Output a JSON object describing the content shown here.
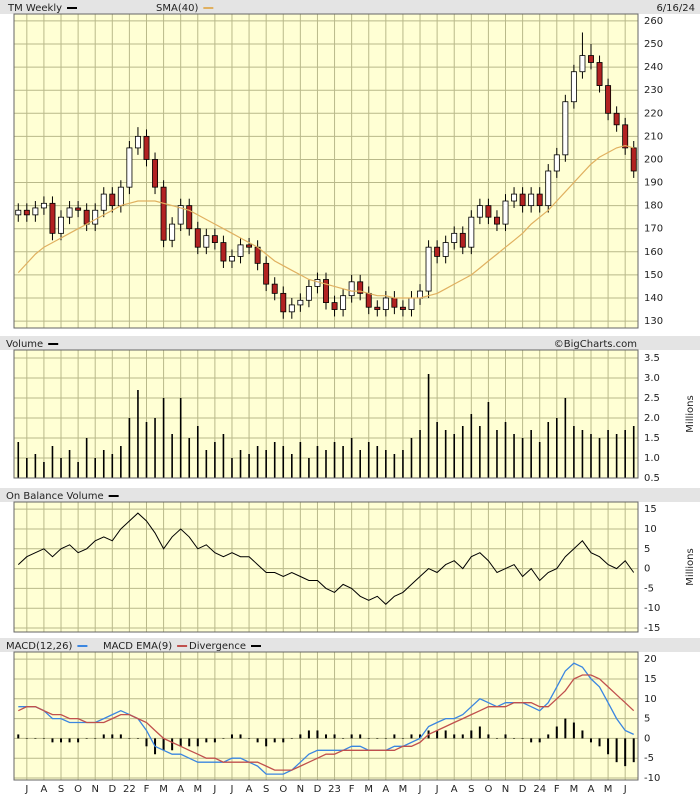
{
  "chart_data": [
    {
      "type": "candlestick",
      "title": "TM Weekly",
      "date": "6/16/24",
      "up_color": "#ffffff",
      "down_color": "#b22222",
      "series": [
        {
          "name": "TM Weekly",
          "color": "#000000",
          "open": [
            176,
            178,
            176,
            179,
            181,
            168,
            175,
            179,
            178,
            172,
            178,
            185,
            180,
            188,
            205,
            210,
            200,
            188,
            165,
            172,
            180,
            170,
            162,
            167,
            164,
            156,
            158,
            163,
            162,
            155,
            146,
            142,
            134,
            137,
            139,
            145,
            148,
            138,
            135,
            141,
            147,
            142,
            136,
            135,
            140,
            136,
            135,
            140,
            143,
            162,
            158,
            164,
            168,
            162,
            175,
            180,
            175,
            172,
            182,
            185,
            180,
            185,
            180,
            195,
            202,
            225,
            238,
            245,
            242,
            232,
            220,
            215,
            205
          ],
          "high": [
            181,
            181,
            182,
            184,
            184,
            178,
            182,
            182,
            181,
            181,
            188,
            188,
            191,
            208,
            214,
            213,
            203,
            191,
            175,
            183,
            183,
            173,
            170,
            170,
            167,
            161,
            166,
            166,
            165,
            158,
            149,
            145,
            140,
            142,
            148,
            151,
            151,
            141,
            144,
            150,
            150,
            145,
            139,
            143,
            143,
            139,
            143,
            146,
            165,
            165,
            167,
            171,
            171,
            178,
            183,
            183,
            178,
            185,
            188,
            188,
            188,
            188,
            198,
            205,
            228,
            241,
            255,
            250,
            245,
            235,
            223,
            218,
            208
          ],
          "low": [
            173,
            173,
            173,
            176,
            165,
            165,
            172,
            175,
            169,
            169,
            175,
            177,
            177,
            185,
            202,
            197,
            185,
            162,
            162,
            169,
            167,
            159,
            159,
            161,
            153,
            153,
            155,
            159,
            152,
            143,
            139,
            131,
            131,
            134,
            136,
            142,
            135,
            132,
            132,
            138,
            139,
            133,
            132,
            132,
            133,
            132,
            132,
            137,
            140,
            155,
            155,
            161,
            159,
            159,
            172,
            172,
            169,
            169,
            179,
            177,
            177,
            177,
            177,
            192,
            199,
            222,
            235,
            239,
            229,
            217,
            212,
            202,
            192
          ],
          "close": [
            178,
            176,
            179,
            181,
            168,
            175,
            179,
            178,
            172,
            178,
            185,
            180,
            188,
            205,
            210,
            200,
            188,
            165,
            172,
            180,
            170,
            162,
            167,
            164,
            156,
            158,
            163,
            162,
            155,
            146,
            142,
            134,
            137,
            139,
            145,
            148,
            138,
            135,
            141,
            147,
            142,
            136,
            135,
            140,
            136,
            135,
            140,
            143,
            162,
            158,
            164,
            168,
            162,
            175,
            180,
            175,
            172,
            182,
            185,
            180,
            185,
            180,
            195,
            202,
            225,
            238,
            245,
            242,
            232,
            220,
            215,
            205,
            195
          ]
        },
        {
          "name": "SMA(40)",
          "color": "#e0b060",
          "values": [
            151,
            155,
            159,
            162,
            164,
            166,
            168,
            170,
            172,
            174,
            176,
            178,
            180,
            181,
            182,
            182,
            182,
            181,
            180,
            179,
            178,
            176,
            174,
            172,
            170,
            168,
            166,
            164,
            162,
            159,
            156,
            154,
            152,
            150,
            148,
            147,
            146,
            145,
            144,
            143,
            143,
            142,
            141,
            141,
            140,
            140,
            140,
            140,
            141,
            142,
            144,
            146,
            148,
            150,
            153,
            156,
            159,
            162,
            165,
            168,
            172,
            175,
            178,
            182,
            186,
            190,
            194,
            198,
            201,
            203,
            205,
            206,
            205
          ]
        }
      ],
      "ylim": [
        127,
        263
      ],
      "yticks": [
        130,
        140,
        150,
        160,
        170,
        180,
        190,
        200,
        210,
        220,
        230,
        240,
        250,
        260
      ],
      "grid": true
    },
    {
      "type": "bar",
      "title": "Volume",
      "source": "©BigCharts.com",
      "y_label": "Millions",
      "color": "#000000",
      "values": [
        1.4,
        1.0,
        1.1,
        0.9,
        1.3,
        1.0,
        1.2,
        0.9,
        1.5,
        1.0,
        1.2,
        1.1,
        1.3,
        2.0,
        2.7,
        1.9,
        2.0,
        2.5,
        1.6,
        2.5,
        1.5,
        1.8,
        1.2,
        1.4,
        1.6,
        1.0,
        1.2,
        1.1,
        1.3,
        1.2,
        1.4,
        1.3,
        1.1,
        1.4,
        1.0,
        1.3,
        1.2,
        1.4,
        1.3,
        1.5,
        1.2,
        1.4,
        1.3,
        1.2,
        1.1,
        1.2,
        1.5,
        1.7,
        3.1,
        1.9,
        1.7,
        1.6,
        1.8,
        2.1,
        1.8,
        2.4,
        1.7,
        1.9,
        1.6,
        1.5,
        1.7,
        1.4,
        1.9,
        2.0,
        2.5,
        1.8,
        1.7,
        1.6,
        1.5,
        1.7,
        1.6,
        1.7,
        1.8
      ],
      "ylim": [
        0.5,
        3.7
      ],
      "yticks": [
        0.5,
        {
          "value": 1,
          "label": "1.0"
        },
        1.5,
        {
          "value": 2,
          "label": "2.0"
        },
        2.5,
        {
          "value": 3,
          "label": "3.0"
        },
        3.5
      ],
      "grid": true
    },
    {
      "type": "line",
      "title": "On Balance Volume",
      "y_label": "Millions",
      "color": "#000000",
      "values": [
        1,
        3,
        4,
        5,
        3,
        5,
        6,
        4,
        5,
        7,
        8,
        7,
        10,
        12,
        14,
        12,
        9,
        5,
        8,
        10,
        8,
        5,
        6,
        4,
        3,
        4,
        3,
        3,
        1,
        -1,
        -1,
        -2,
        -1,
        -2,
        -3,
        -3,
        -5,
        -6,
        -4,
        -5,
        -7,
        -8,
        -7,
        -9,
        -7,
        -6,
        -4,
        -2,
        0,
        -1,
        1,
        2,
        0,
        3,
        4,
        2,
        -1,
        0,
        1,
        -2,
        0,
        -3,
        -1,
        0,
        3,
        5,
        7,
        4,
        3,
        1,
        0,
        2,
        -1
      ],
      "ylim": [
        -16,
        16.8
      ],
      "yticks": [
        -15,
        -10,
        -5,
        0,
        5,
        10,
        15
      ],
      "grid": true
    },
    {
      "type": "macd",
      "categories": [
        null,
        "J",
        null,
        "A",
        null,
        "S",
        null,
        "O",
        null,
        "N",
        null,
        "D",
        null,
        "22",
        null,
        "F",
        null,
        "M",
        null,
        "A",
        null,
        "M",
        null,
        "J",
        null,
        "J",
        null,
        "A",
        null,
        "S",
        null,
        "O",
        null,
        "N",
        null,
        "D",
        null,
        "23",
        null,
        "F",
        null,
        "M",
        null,
        "A",
        null,
        "M",
        null,
        "J",
        null,
        "J",
        null,
        "A",
        null,
        "S",
        null,
        "O",
        null,
        "N",
        null,
        "D",
        null,
        "24",
        null,
        "F",
        null,
        "M",
        null,
        "A",
        null,
        "M",
        null,
        "J",
        null
      ],
      "series": [
        {
          "name": "MACD(12,26)",
          "color": "#3b86e0",
          "kind": "line",
          "values": [
            8,
            8,
            8,
            7,
            5,
            5,
            4,
            4,
            4,
            4,
            5,
            6,
            7,
            6,
            5,
            2,
            -2,
            -3,
            -4,
            -4,
            -5,
            -6,
            -6,
            -6,
            -6,
            -5,
            -5,
            -6,
            -7,
            -9,
            -9,
            -9,
            -8,
            -6,
            -4,
            -3,
            -3,
            -3,
            -3,
            -2,
            -2,
            -3,
            -3,
            -3,
            -2,
            -2,
            -1,
            0,
            3,
            4,
            5,
            5,
            6,
            8,
            10,
            9,
            8,
            9,
            9,
            9,
            8,
            7,
            9,
            13,
            17,
            19,
            18,
            15,
            13,
            9,
            5,
            2,
            1
          ]
        },
        {
          "name": "MACD EMA(9)",
          "color": "#c0504d",
          "kind": "line",
          "values": [
            7,
            8,
            8,
            7,
            6,
            6,
            5,
            5,
            4,
            4,
            4,
            5,
            6,
            6,
            5,
            4,
            2,
            0,
            -1,
            -2,
            -3,
            -4,
            -5,
            -5,
            -6,
            -6,
            -6,
            -6,
            -6,
            -7,
            -8,
            -8,
            -8,
            -7,
            -6,
            -5,
            -4,
            -4,
            -3,
            -3,
            -3,
            -3,
            -3,
            -3,
            -3,
            -2,
            -2,
            -1,
            1,
            2,
            3,
            4,
            5,
            6,
            7,
            8,
            8,
            8,
            9,
            9,
            9,
            8,
            8,
            10,
            12,
            15,
            16,
            16,
            15,
            13,
            11,
            9,
            7
          ]
        },
        {
          "name": "Divergence",
          "color": "#000000",
          "kind": "bar",
          "values": [
            1,
            0,
            0,
            0,
            -1,
            -1,
            -1,
            -1,
            0,
            0,
            1,
            1,
            1,
            0,
            0,
            -2,
            -4,
            -3,
            -3,
            -2,
            -2,
            -2,
            -1,
            -1,
            0,
            1,
            1,
            0,
            -1,
            -2,
            -1,
            -1,
            0,
            1,
            2,
            2,
            1,
            1,
            0,
            1,
            1,
            0,
            0,
            0,
            1,
            0,
            1,
            1,
            2,
            2,
            2,
            1,
            1,
            2,
            3,
            1,
            0,
            1,
            0,
            0,
            -1,
            -1,
            1,
            3,
            5,
            4,
            2,
            -1,
            -2,
            -4,
            -6,
            -7,
            -6
          ]
        }
      ],
      "ylim": [
        -10.5,
        21.8
      ],
      "yticks": [
        -10,
        -5,
        0,
        5,
        10,
        15,
        20
      ],
      "grid": true
    }
  ]
}
